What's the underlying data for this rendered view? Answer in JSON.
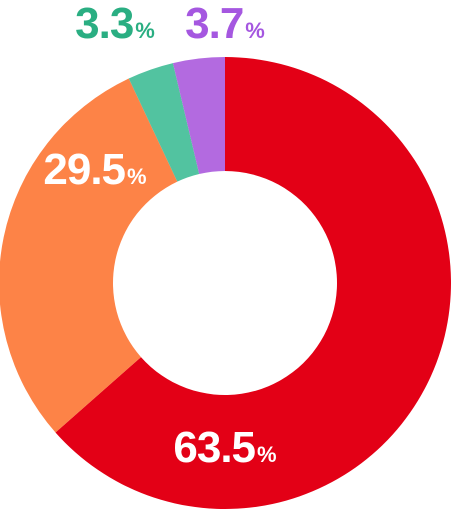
{
  "chart_data": {
    "type": "donut",
    "values": [
      63.5,
      29.5,
      3.3,
      3.7
    ],
    "colors": [
      "#e30016",
      "#fd8347",
      "#52c3a0",
      "#b36ae0"
    ],
    "unit": "%"
  }
}
